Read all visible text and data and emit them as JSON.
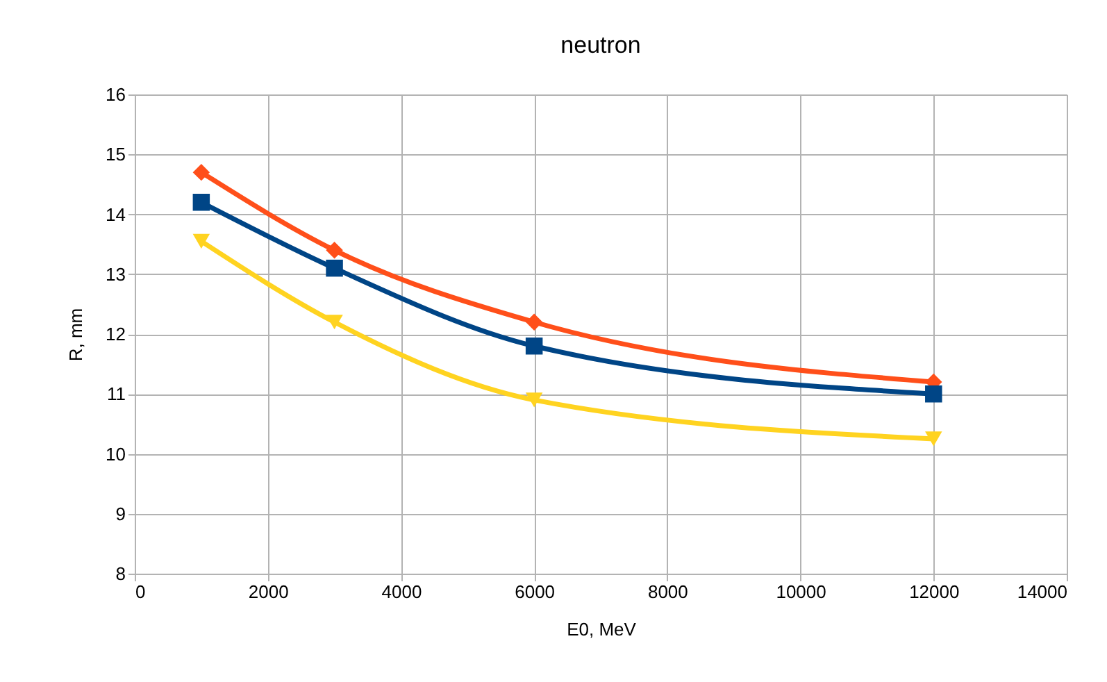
{
  "chart_data": {
    "type": "line",
    "title": "neutron",
    "xlabel": "E0, MeV",
    "ylabel": "R, mm",
    "x": [
      1000,
      3000,
      6000,
      12000
    ],
    "series": [
      {
        "color": "#ff4f1a",
        "marker": "diamond",
        "values": [
          14.7,
          13.4,
          12.2,
          11.2
        ]
      },
      {
        "color": "#004586",
        "marker": "square",
        "values": [
          14.2,
          13.1,
          11.8,
          11.0
        ]
      },
      {
        "color": "#ffd320",
        "marker": "triangle-down",
        "values": [
          13.55,
          12.2,
          10.9,
          10.25
        ]
      }
    ],
    "xlim": [
      0,
      14000
    ],
    "xticks": [
      0,
      2000,
      4000,
      6000,
      8000,
      10000,
      12000,
      14000
    ],
    "ylim": [
      8,
      16
    ],
    "yticks": [
      8,
      9,
      10,
      11,
      12,
      13,
      14,
      15,
      16
    ],
    "grid": true,
    "legend": false,
    "line_style": "solid"
  }
}
